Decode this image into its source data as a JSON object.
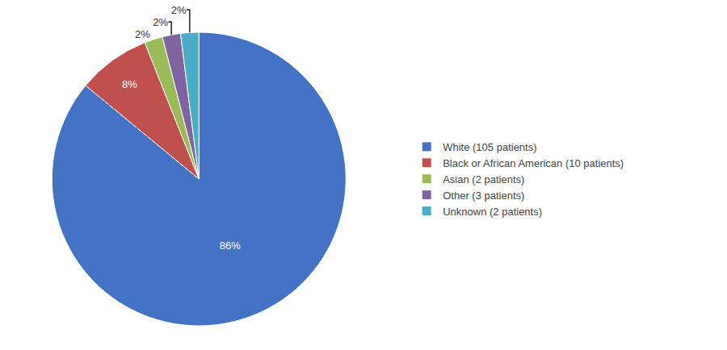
{
  "chart_data": {
    "type": "pie",
    "categories": [
      "White (105 patients)",
      "Black or African American (10 patients)",
      "Asian (2 patients)",
      "Other (3 patients)",
      "Unknown (2 patients)"
    ],
    "values": [
      86,
      8,
      2,
      2,
      2
    ],
    "value_labels": [
      "86%",
      "8%",
      "2%",
      "2%",
      "2%"
    ],
    "data_labels": true,
    "colors": [
      "#4472C4",
      "#C0504D",
      "#9BBB59",
      "#8064A2",
      "#4BACC6"
    ],
    "legend": "right"
  }
}
